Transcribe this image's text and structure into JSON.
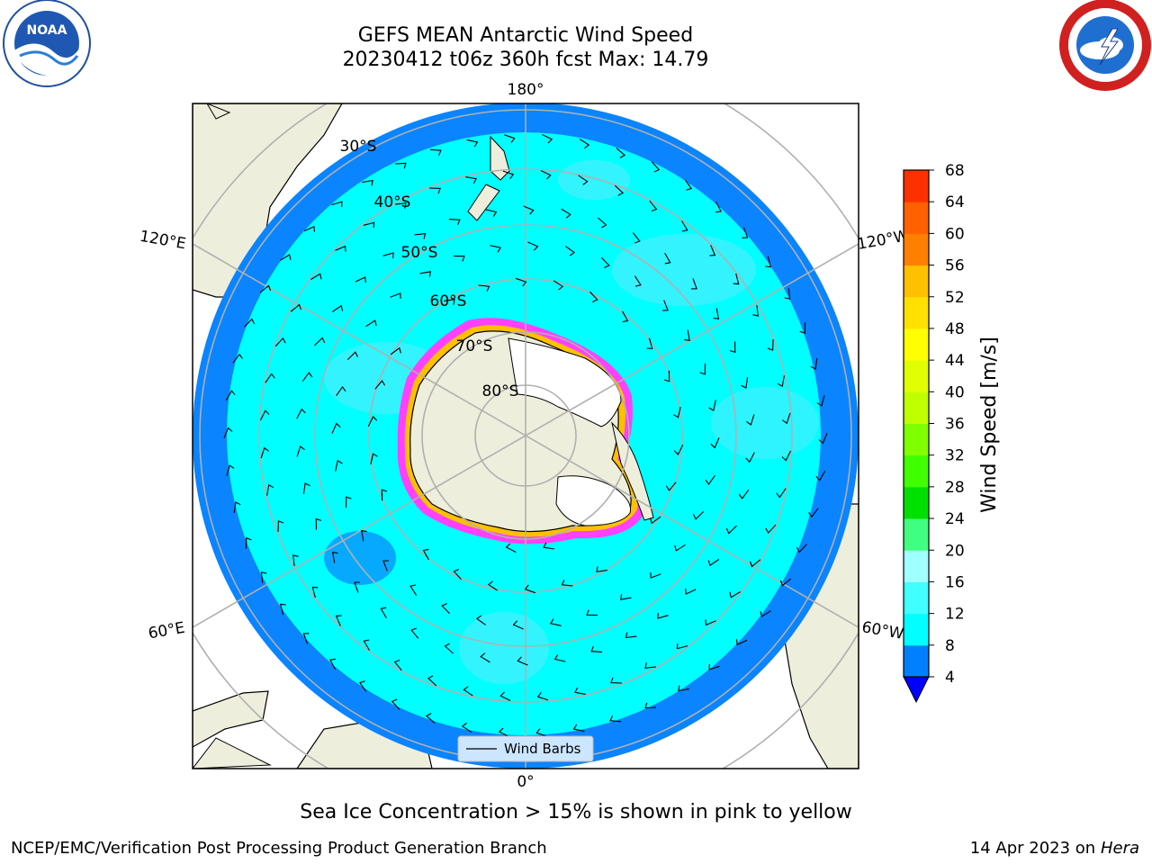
{
  "title": {
    "line1": "GEFS MEAN Antarctic Wind Speed",
    "line2": "20230412 t06z 360h fcst   Max: 14.79"
  },
  "logos": {
    "left": "noaa-logo",
    "left_text": "NOAA",
    "right": "nws-logo"
  },
  "map": {
    "projection": "south-polar-stereographic",
    "lon_labels": {
      "top": "180°",
      "bottom": "0°",
      "upper_left": "120°E",
      "upper_right": "120°W",
      "lower_left": "60°E",
      "lower_right": "60°W"
    },
    "lat_labels": [
      "30°S",
      "40°S",
      "50°S",
      "60°S",
      "70°S",
      "80°S"
    ],
    "legend": {
      "label": "Wind Barbs"
    },
    "colors": {
      "ocean_outer": "#1e90ff",
      "wind_4_8": "#0080ff",
      "wind_8_12": "#00ffff",
      "wind_12_16": "#40f0ff",
      "land": "#eeeedc",
      "ice_shelf": "#ffffff",
      "sea_ice_edge": "#ff40ff",
      "sea_ice_inner": "#ffc000",
      "grid": "#b0b0b0"
    }
  },
  "colorbar": {
    "label": "Wind Speed [m/s]",
    "ticks": [
      "4",
      "8",
      "12",
      "16",
      "20",
      "24",
      "28",
      "32",
      "36",
      "40",
      "44",
      "48",
      "52",
      "56",
      "60",
      "64",
      "68"
    ],
    "colors": [
      "#0080ff",
      "#00ffff",
      "#40ffff",
      "#a0ffff",
      "#40ff80",
      "#00e000",
      "#40ff00",
      "#80ff00",
      "#c0ff00",
      "#e0ff00",
      "#ffff00",
      "#ffe000",
      "#ffc000",
      "#ff8000",
      "#ff6000",
      "#ff3000"
    ],
    "under_color": "#0000ff"
  },
  "footer": {
    "caption": "Sea Ice Concentration > 15% is shown in pink to yellow",
    "left": "NCEP/EMC/Verification Post Processing Product Generation Branch",
    "right_date": "14 Apr 2023 on ",
    "right_host": "Hera"
  }
}
